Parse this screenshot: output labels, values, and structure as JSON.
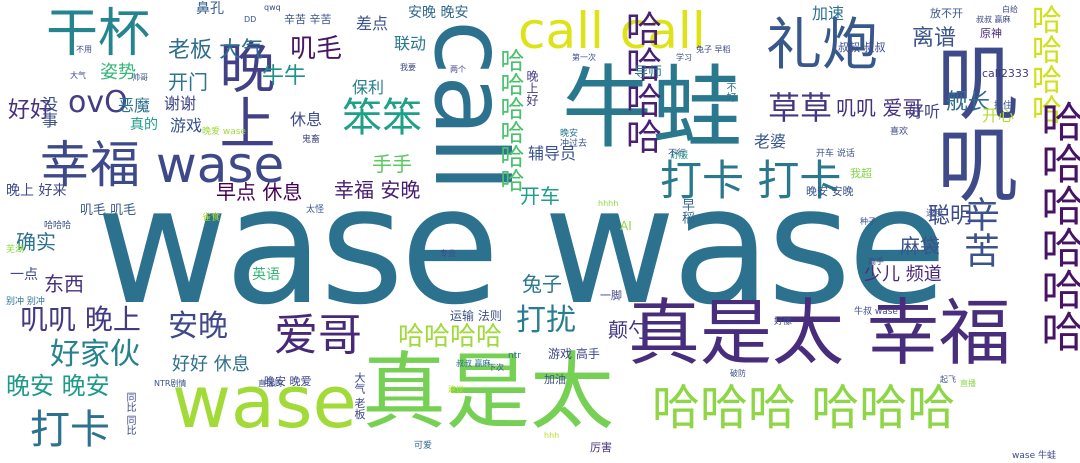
{
  "words": [
    {
      "text": "wase wase",
      "color": "#2c728e"
    },
    {
      "text": "真是太 幸福",
      "color": "#472d7b"
    },
    {
      "text": "真是太",
      "color": "#75d054"
    },
    {
      "text": "wase",
      "color": "#a2da37"
    },
    {
      "text": "牛蛙",
      "color": "#2a788e"
    },
    {
      "text": "call",
      "color": "#2c728e"
    },
    {
      "text": "叽叽",
      "color": "#3e4a89"
    },
    {
      "text": "幸福 wase",
      "color": "#3e4989"
    },
    {
      "text": "晚上",
      "color": "#424086"
    },
    {
      "text": "干杯",
      "color": "#25858e"
    },
    {
      "text": "礼炮",
      "color": "#38588c"
    },
    {
      "text": "call call",
      "color": "#dde318"
    },
    {
      "text": "哈哈哈哈",
      "color": "#d0e11c"
    },
    {
      "text": "哈哈哈 哈哈哈",
      "color": "#8ed645"
    },
    {
      "text": "哈哈哈哈哈哈",
      "color": "#4ac16d"
    },
    {
      "text": "哈哈哈哈哈哈",
      "color": "#471365"
    },
    {
      "text": "哈哈哈哈",
      "color": "#482173"
    },
    {
      "text": "打卡 打卡",
      "color": "#2a788e"
    },
    {
      "text": "辛苦",
      "color": "#3b528b"
    },
    {
      "text": "爱哥",
      "color": "#482878"
    },
    {
      "text": "笨笨",
      "color": "#1fa088"
    },
    {
      "text": "草草",
      "color": "#453882"
    },
    {
      "text": "打卡",
      "color": "#2c728e"
    },
    {
      "text": "ovO",
      "color": "#433e85"
    },
    {
      "text": "安晚",
      "color": "#3e4989"
    },
    {
      "text": "叽叽 晚上",
      "color": "#443a83"
    },
    {
      "text": "好家伙",
      "color": "#26828e"
    },
    {
      "text": "打扰",
      "color": "#287d8e"
    },
    {
      "text": "哈哈哈哈",
      "color": "#9fda3a"
    },
    {
      "text": "晚安 晚安",
      "color": "#1f9a8a"
    },
    {
      "text": "老板 大气",
      "color": "#2e6e8e"
    },
    {
      "text": "叽毛",
      "color": "#481769"
    },
    {
      "text": "开门",
      "color": "#2b758e"
    },
    {
      "text": "牛牛",
      "color": "#20928c"
    },
    {
      "text": "好好",
      "color": "#472f7d"
    },
    {
      "text": "聪明",
      "color": "#3e4c8a"
    },
    {
      "text": "舰长",
      "color": "#2f6c8e"
    },
    {
      "text": "离谱",
      "color": "#3b528b"
    },
    {
      "text": "叽叽 爱哥",
      "color": "#46327e"
    },
    {
      "text": "幸福 安晚",
      "color": "#481f70"
    },
    {
      "text": "早点 休息",
      "color": "#440154"
    },
    {
      "text": "手手",
      "color": "#5ec962"
    },
    {
      "text": "开车",
      "color": "#1f9e89"
    },
    {
      "text": "确实",
      "color": "#2c728e"
    },
    {
      "text": "东西",
      "color": "#46327e"
    },
    {
      "text": "兔子",
      "color": "#2a788e"
    },
    {
      "text": "颠勺",
      "color": "#453882"
    },
    {
      "text": "好好 休息",
      "color": "#2d708e"
    },
    {
      "text": "麻袋",
      "color": "#3b528b"
    },
    {
      "text": "少儿 频道",
      "color": "#482878"
    },
    {
      "text": "姿势",
      "color": "#35b779"
    },
    {
      "text": "保利",
      "color": "#277f8e"
    },
    {
      "text": "谢谢",
      "color": "#404688"
    },
    {
      "text": "恶魔",
      "color": "#2c728e"
    },
    {
      "text": "游戏",
      "color": "#3b528b"
    },
    {
      "text": "休息",
      "color": "#3e4c8a"
    },
    {
      "text": "差点",
      "color": "#3b528b"
    },
    {
      "text": "联动",
      "color": "#2a788e"
    },
    {
      "text": "加速",
      "color": "#2c728e"
    },
    {
      "text": "安晚 晚安",
      "color": "#31688e"
    },
    {
      "text": "鼻孔",
      "color": "#355f8d"
    },
    {
      "text": "好听",
      "color": "#414487"
    },
    {
      "text": "开心",
      "color": "#b5de2b"
    },
    {
      "text": "老婆",
      "color": "#38588c"
    },
    {
      "text": "辅导员",
      "color": "#3b528b"
    },
    {
      "text": "晚上 好来",
      "color": "#3e4a89"
    },
    {
      "text": "真的",
      "color": "#1f9e89"
    },
    {
      "text": "没事",
      "color": "#3b528b"
    },
    {
      "text": "叽毛 叽毛",
      "color": "#38598c"
    },
    {
      "text": "一点",
      "color": "#3e4989"
    },
    {
      "text": "英语",
      "color": "#35b779"
    },
    {
      "text": "导师",
      "color": "#2a788e"
    },
    {
      "text": "晚上好",
      "color": "#453882"
    },
    {
      "text": "运输 法则",
      "color": "#3b528b"
    },
    {
      "text": "游戏 高手",
      "color": "#404688"
    },
    {
      "text": "晚安 晚爱",
      "color": "#404688"
    },
    {
      "text": "大气 老板",
      "color": "#3e4989"
    },
    {
      "text": "加油",
      "color": "#3b528b"
    },
    {
      "text": "厉害",
      "color": "#46327e"
    },
    {
      "text": "早稻",
      "color": "#31688e"
    },
    {
      "text": "晚安 安晚",
      "color": "#3b528b"
    },
    {
      "text": "我超",
      "color": "#84d44b"
    },
    {
      "text": "叔叔 叔叔",
      "color": "#3e4a89"
    },
    {
      "text": "辛苦 辛苦",
      "color": "#3b528b"
    },
    {
      "text": "call2333",
      "color": "#453882"
    },
    {
      "text": "原神",
      "color": "#482878"
    },
    {
      "text": "放不开",
      "color": "#38588c"
    },
    {
      "text": "一脚",
      "color": "#404688"
    },
    {
      "text": "牛叔 wase",
      "color": "#3e4c8a"
    },
    {
      "text": "wase 牛蛙",
      "color": "#3e4989"
    },
    {
      "text": "开车 说话",
      "color": "#3b528b"
    },
    {
      "text": "不好",
      "color": "#2c728e"
    },
    {
      "text": "AI",
      "color": "#8fd744"
    },
    {
      "text": "叔叔 赢麻",
      "color": "#3e4a89"
    },
    {
      "text": "速度",
      "color": "#3b528b"
    },
    {
      "text": "舒服",
      "color": "#1f9e89"
    },
    {
      "text": "不行",
      "color": "#3e4989"
    },
    {
      "text": "晚安",
      "color": "#2a788e"
    },
    {
      "text": "喜欢",
      "color": "#3e4a89"
    },
    {
      "text": "抓住",
      "color": "#3b528b"
    },
    {
      "text": "第一次",
      "color": "#3b528b"
    },
    {
      "text": "兔子 早稻",
      "color": "#3e4989"
    },
    {
      "text": "太怪",
      "color": "#3b528b"
    },
    {
      "text": "好像",
      "color": "#3e4a89"
    },
    {
      "text": "可爱",
      "color": "#31688e"
    },
    {
      "text": "鬼畜",
      "color": "#404688"
    },
    {
      "text": "冲过去",
      "color": "#3b528b"
    },
    {
      "text": "晚爱 wase",
      "color": "#9fda3a"
    },
    {
      "text": "雀食",
      "color": "#b5de2b"
    },
    {
      "text": "hhhh",
      "color": "#8fd744"
    },
    {
      "text": "哈哈哈",
      "color": "#3b528b"
    },
    {
      "text": "NTR剧情",
      "color": "#3b528b"
    },
    {
      "text": "直播间",
      "color": "#3b528b"
    },
    {
      "text": "叔叔 赢麻",
      "color": "#2c728e"
    },
    {
      "text": "专业",
      "color": "#3e4989"
    },
    {
      "text": "建议",
      "color": "#b5de2b"
    },
    {
      "text": "下次",
      "color": "#3b528b"
    },
    {
      "text": "ntr",
      "color": "#2c728e"
    },
    {
      "text": "种子",
      "color": "#3b528b"
    },
    {
      "text": "高手",
      "color": "#3e4989"
    },
    {
      "text": "同比 同比",
      "color": "#3e4989"
    },
    {
      "text": "芜湖",
      "color": "#8fd744"
    },
    {
      "text": "别冲 别冲",
      "color": "#2c728e"
    },
    {
      "text": "大气",
      "color": "#3e4989"
    },
    {
      "text": "不用",
      "color": "#3e4989"
    },
    {
      "text": "DD",
      "color": "#3b528b"
    },
    {
      "text": "qwq",
      "color": "#3e4989"
    },
    {
      "text": "白给",
      "color": "#3e4989"
    },
    {
      "text": "帅哥",
      "color": "#3b528b"
    },
    {
      "text": "学习",
      "color": "#3e4989"
    },
    {
      "text": "两个",
      "color": "#3e4989"
    },
    {
      "text": "我要",
      "color": "#3e4989"
    },
    {
      "text": "破防",
      "color": "#3b528b"
    },
    {
      "text": "hhh",
      "color": "#b5de2b"
    },
    {
      "text": "起飞",
      "color": "#3b528b"
    },
    {
      "text": "直播",
      "color": "#8fd744"
    }
  ]
}
